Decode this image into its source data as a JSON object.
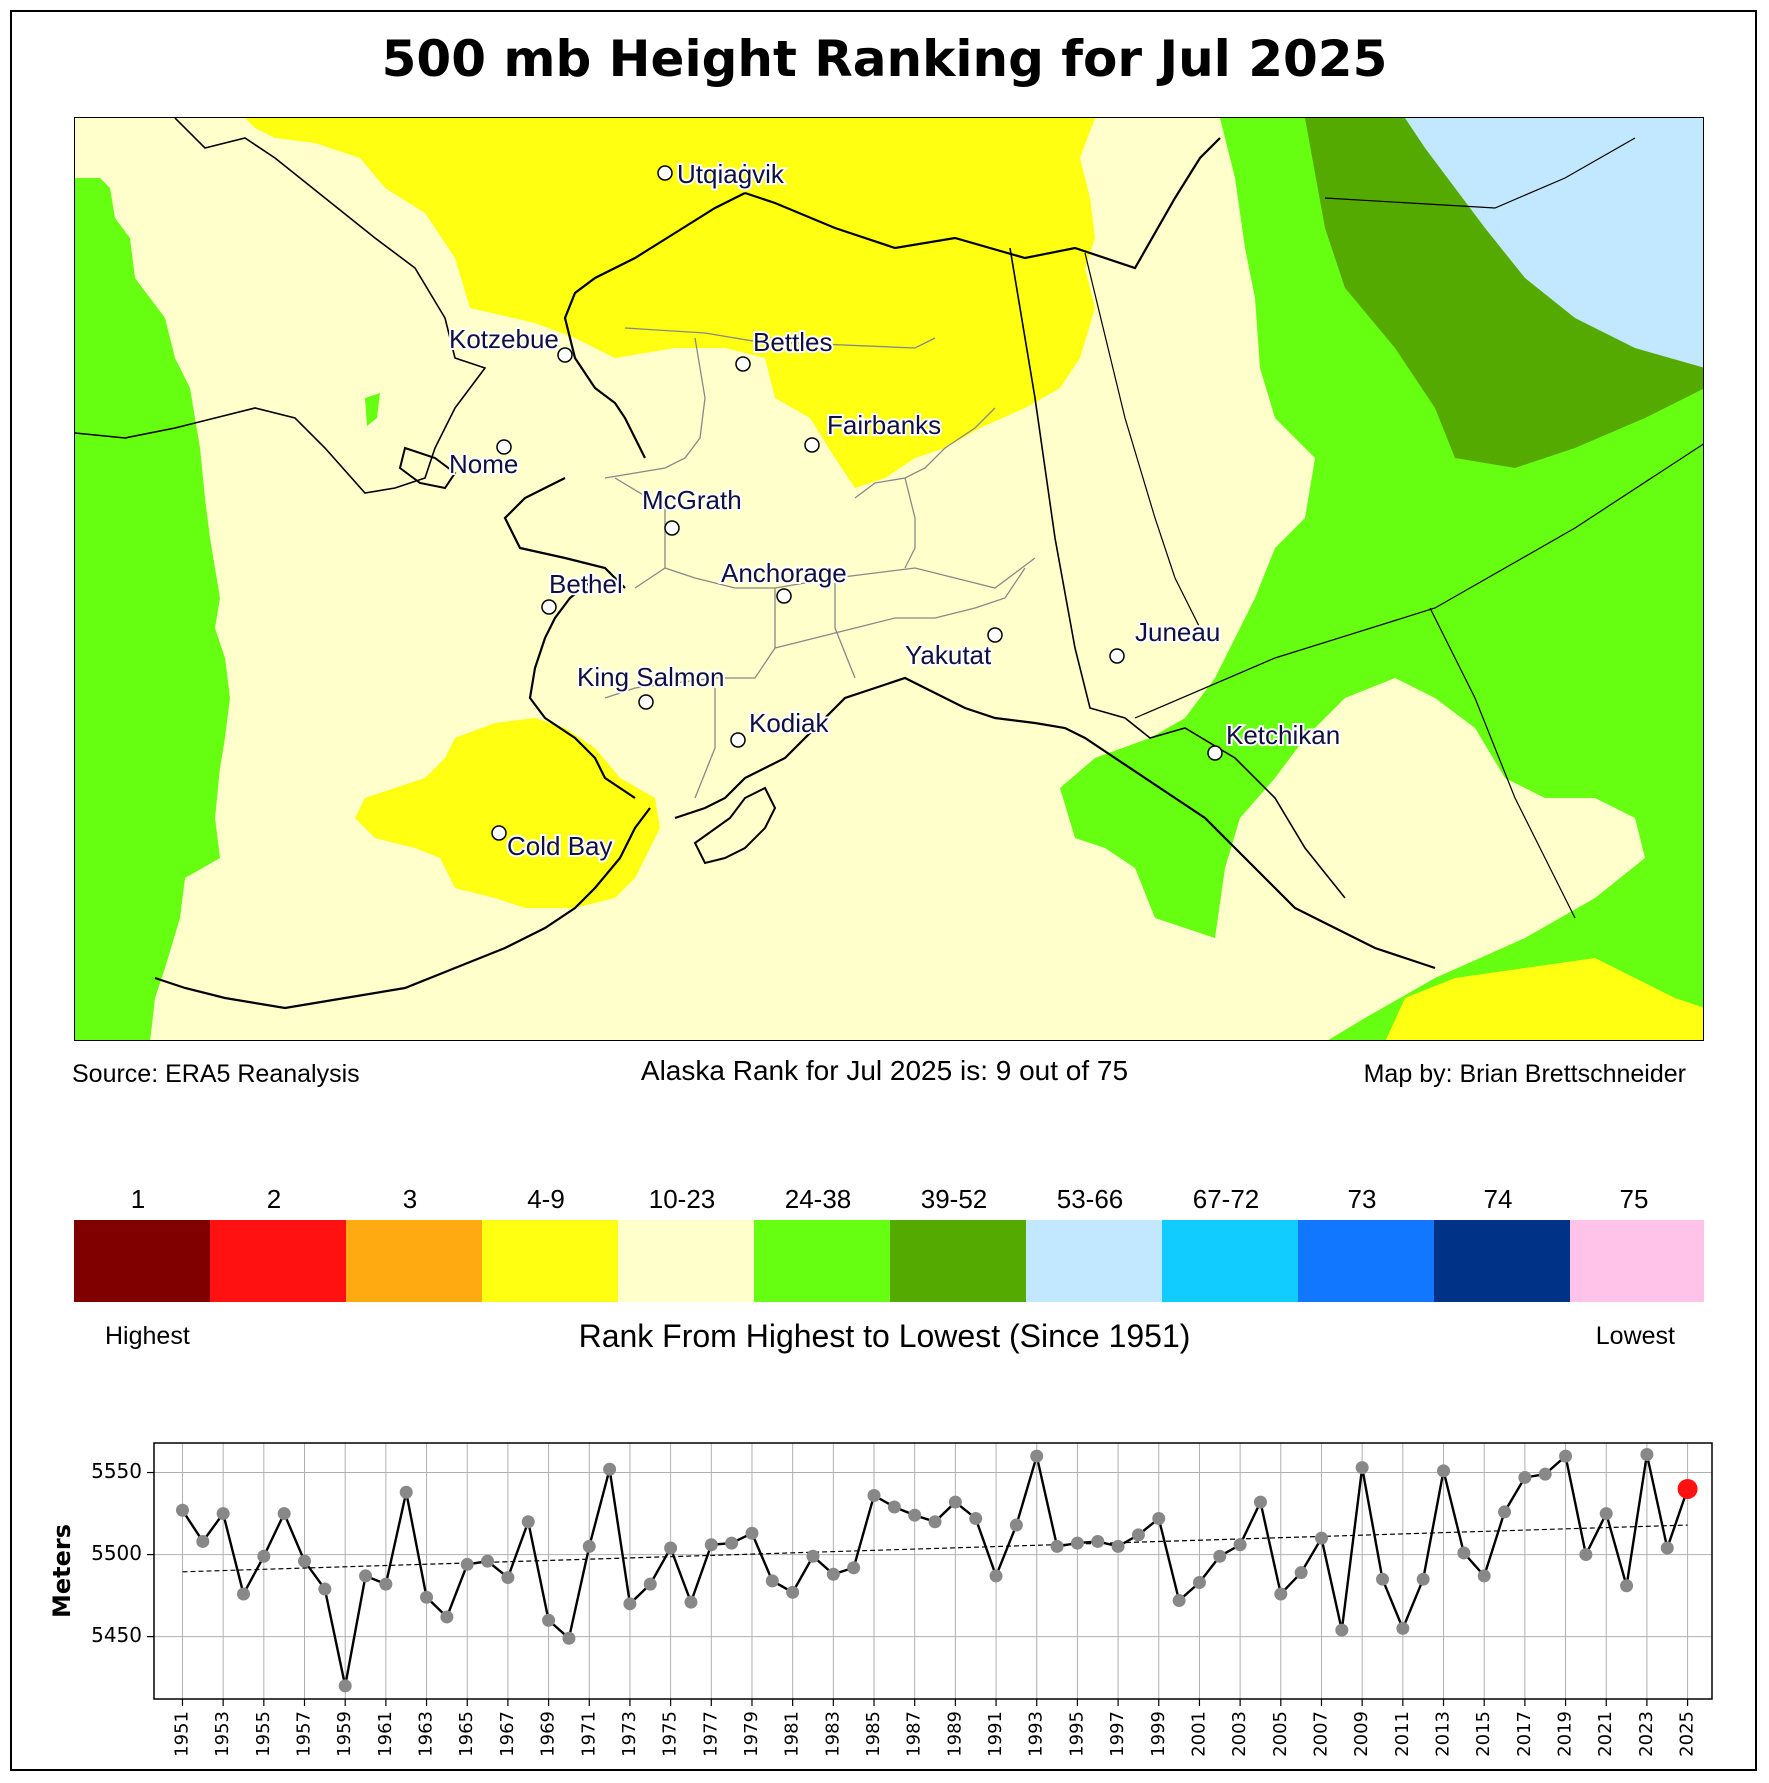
{
  "title": "500 mb Height Ranking for Jul 2025",
  "source_text": "Source: ERA5 Reanalysis",
  "rank_text": "Alaska Rank for Jul 2025 is: 9 out of 75",
  "credit_text": "Map by: Brian Brettschneider",
  "map": {
    "cities": [
      {
        "name": "Utqiaġvik"
      },
      {
        "name": "Kotzebue"
      },
      {
        "name": "Bettles"
      },
      {
        "name": "Fairbanks"
      },
      {
        "name": "Nome"
      },
      {
        "name": "McGrath"
      },
      {
        "name": "Bethel"
      },
      {
        "name": "Anchorage"
      },
      {
        "name": "Yakutat"
      },
      {
        "name": "Juneau"
      },
      {
        "name": "King Salmon"
      },
      {
        "name": "Kodiak"
      },
      {
        "name": "Ketchikan"
      },
      {
        "name": "Cold Bay"
      }
    ]
  },
  "colorbar": {
    "bins": [
      {
        "label": "1",
        "color": "#800000"
      },
      {
        "label": "2",
        "color": "#ff1111"
      },
      {
        "label": "3",
        "color": "#ffaa11"
      },
      {
        "label": "4-9",
        "color": "#ffff11"
      },
      {
        "label": "10-23",
        "color": "#ffffcc"
      },
      {
        "label": "24-38",
        "color": "#66ff11"
      },
      {
        "label": "39-52",
        "color": "#55aa00"
      },
      {
        "label": "53-66",
        "color": "#c2e8ff"
      },
      {
        "label": "67-72",
        "color": "#11ccff"
      },
      {
        "label": "73",
        "color": "#1177ff"
      },
      {
        "label": "74",
        "color": "#003388"
      },
      {
        "label": "75",
        "color": "#ffc2e8"
      }
    ],
    "left_label": "Highest",
    "right_label": "Lowest",
    "caption": "Rank From Highest to Lowest (Since 1951)"
  },
  "chart_data": {
    "type": "line",
    "ylabel": "Meters",
    "xlabel": "",
    "ylim": [
      5412,
      5568
    ],
    "yticks": [
      5450,
      5500,
      5550
    ],
    "xlim": [
      1949.6,
      2026.2
    ],
    "xticks": [
      1951,
      1953,
      1955,
      1957,
      1959,
      1961,
      1963,
      1965,
      1967,
      1969,
      1971,
      1973,
      1975,
      1977,
      1979,
      1981,
      1983,
      1985,
      1987,
      1989,
      1991,
      1993,
      1995,
      1997,
      1999,
      2001,
      2003,
      2005,
      2007,
      2009,
      2011,
      2013,
      2015,
      2017,
      2019,
      2021,
      2023,
      2025
    ],
    "grid": true,
    "x": [
      1951,
      1952,
      1953,
      1954,
      1955,
      1956,
      1957,
      1958,
      1959,
      1960,
      1961,
      1962,
      1963,
      1964,
      1965,
      1966,
      1967,
      1968,
      1969,
      1970,
      1971,
      1972,
      1973,
      1974,
      1975,
      1976,
      1977,
      1978,
      1979,
      1980,
      1981,
      1982,
      1983,
      1984,
      1985,
      1986,
      1987,
      1988,
      1989,
      1990,
      1991,
      1992,
      1993,
      1994,
      1995,
      1996,
      1997,
      1998,
      1999,
      2000,
      2001,
      2002,
      2003,
      2004,
      2005,
      2006,
      2007,
      2008,
      2009,
      2010,
      2011,
      2012,
      2013,
      2014,
      2015,
      2016,
      2017,
      2018,
      2019,
      2020,
      2021,
      2022,
      2023,
      2024,
      2025
    ],
    "series": [
      {
        "values": [
          5527,
          5508,
          5525,
          5476,
          5499,
          5525,
          5496,
          5479,
          5420,
          5487,
          5482,
          5538,
          5474,
          5462,
          5494,
          5496,
          5486,
          5520,
          5460,
          5449,
          5505,
          5552,
          5470,
          5482,
          5504,
          5471,
          5506,
          5507,
          5513,
          5484,
          5477,
          5499,
          5488,
          5492,
          5536,
          5529,
          5524,
          5520,
          5532,
          5522,
          5487,
          5518,
          5560,
          5505,
          5507,
          5508,
          5505,
          5512,
          5522,
          5472,
          5483,
          5499,
          5506,
          5532,
          5476,
          5489,
          5510,
          5454,
          5553,
          5485,
          5455,
          5485,
          5551,
          5501,
          5487,
          5526,
          5547,
          5549,
          5560,
          5500,
          5525,
          5481,
          5561,
          5504,
          5540
        ],
        "color": "#000000",
        "marker_color": "#888888",
        "highlight": {
          "x": 2025,
          "y": 5540,
          "color": "#ff1111"
        }
      }
    ],
    "trend": {
      "y_start": 5489.5,
      "y_end": 5518,
      "style": "dashed"
    }
  }
}
